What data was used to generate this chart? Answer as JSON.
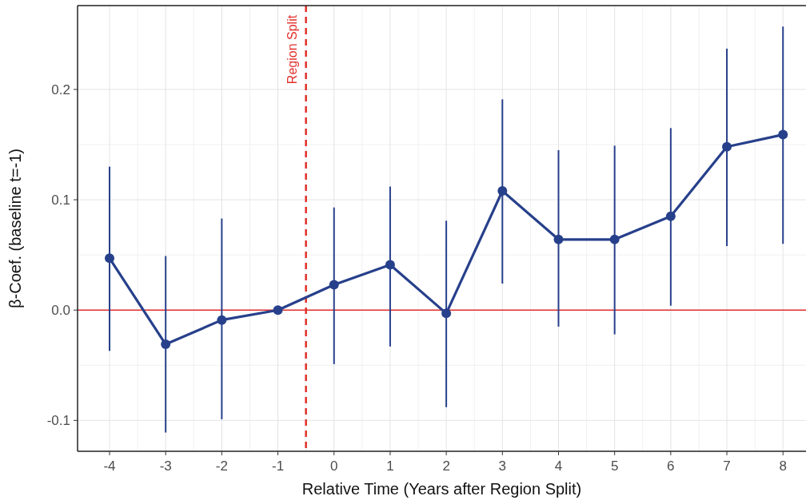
{
  "chart_data": {
    "type": "line",
    "xlabel": "Relative Time (Years after Region Split)",
    "ylabel": "β-Coef. (baseline t=-1)",
    "x": [
      -4,
      -3,
      -2,
      -1,
      0,
      1,
      2,
      3,
      4,
      5,
      6,
      7,
      8
    ],
    "series": [
      {
        "color": "#27408b",
        "values": [
          0.047,
          -0.031,
          -0.009,
          0,
          0.023,
          0.041,
          -0.003,
          0.108,
          0.064,
          0.064,
          0.085,
          0.148,
          0.159
        ],
        "errors": [
          [
            -0.037,
            0.13
          ],
          [
            -0.111,
            0.049
          ],
          [
            -0.099,
            0.083
          ],
          null,
          [
            -0.049,
            0.093
          ],
          [
            -0.033,
            0.112
          ],
          [
            -0.088,
            0.081
          ],
          [
            0.024,
            0.191
          ],
          [
            -0.015,
            0.145
          ],
          [
            -0.022,
            0.149
          ],
          [
            0.004,
            0.165
          ],
          [
            0.058,
            0.237
          ],
          [
            0.06,
            0.257
          ]
        ]
      }
    ],
    "xlim": [
      -4.57,
      8.41
    ],
    "xticks": [
      -4,
      -3,
      -2,
      -1,
      0,
      1,
      2,
      3,
      4,
      5,
      6,
      7,
      8
    ],
    "ylim": [
      -0.128,
      0.276
    ],
    "yticks": [
      {
        "value": -0.1,
        "label": "-0.1"
      },
      {
        "value": 0,
        "label": "0.0"
      },
      {
        "value": 0.1,
        "label": "0.1"
      },
      {
        "value": 0.2,
        "label": "0.2"
      }
    ],
    "ref_lines": [
      {
        "axis": "y",
        "value": 0,
        "label": null,
        "color": "#e03030",
        "line_style": "solid"
      },
      {
        "axis": "x",
        "value": -0.5,
        "label": "Region Split",
        "color": "#e0302a",
        "line_style": "dashed"
      }
    ],
    "grid": true,
    "marker": "circle",
    "line_style": "solid"
  }
}
